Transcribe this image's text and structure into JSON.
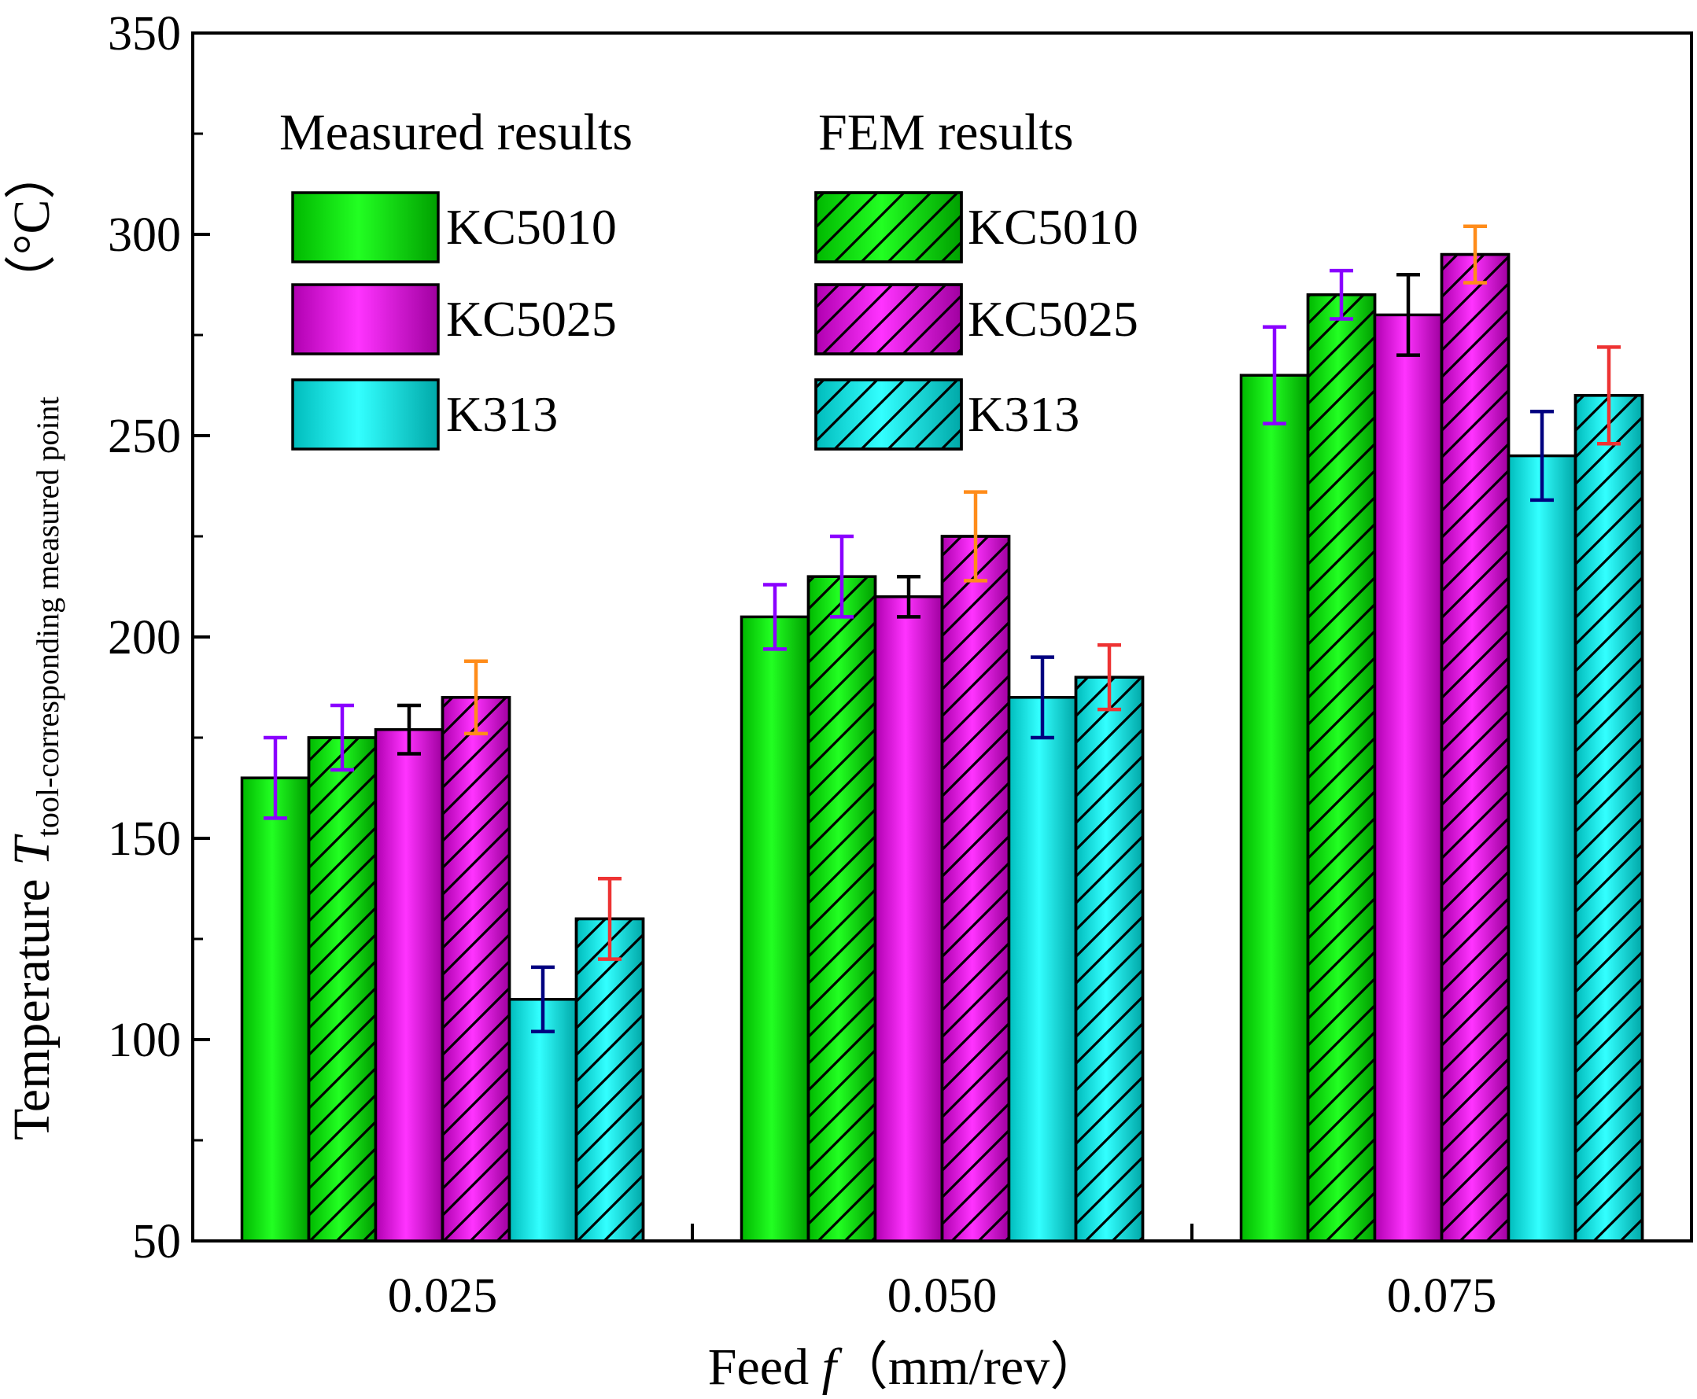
{
  "chart_data": {
    "type": "bar",
    "title": "",
    "xlabel": {
      "pre": "Feed ",
      "var": "f",
      "post": "（mm/rev）"
    },
    "ylabel": {
      "pre": "Temperature ",
      "var": "T",
      "sub": "tool-corresponding measured point",
      "unit": "（°C）"
    },
    "categories": [
      "0.025",
      "0.050",
      "0.075"
    ],
    "ylim": [
      50,
      350
    ],
    "yticks": [
      "50",
      "100",
      "150",
      "200",
      "250",
      "300",
      "350"
    ],
    "grid": false,
    "legend": {
      "placement": "top-left",
      "groups": [
        {
          "heading": "Measured results",
          "entries": [
            "KC5010",
            "KC5025",
            "K313"
          ]
        },
        {
          "heading": "FEM results",
          "entries": [
            "KC5010",
            "KC5025",
            "K313"
          ]
        }
      ]
    },
    "series": [
      {
        "name": "KC5010",
        "group": "Measured results",
        "color": "#00e000",
        "hatched": false,
        "errColor": "#8a00ff",
        "values": [
          165,
          205,
          265
        ],
        "errors": [
          10,
          8,
          12
        ]
      },
      {
        "name": "KC5010",
        "group": "FEM results",
        "color": "#00e000",
        "hatched": true,
        "errColor": "#8a00ff",
        "values": [
          175,
          215,
          285
        ],
        "errors": [
          8,
          10,
          6
        ]
      },
      {
        "name": "KC5025",
        "group": "Measured results",
        "color": "#ee00ee",
        "hatched": false,
        "errColor": "#000000",
        "values": [
          177,
          210,
          280
        ],
        "errors": [
          6,
          5,
          10
        ]
      },
      {
        "name": "KC5025",
        "group": "FEM results",
        "color": "#ee00ee",
        "hatched": true,
        "errColor": "#ff8c1a",
        "values": [
          185,
          225,
          295
        ],
        "errors": [
          9,
          11,
          7
        ]
      },
      {
        "name": "K313",
        "group": "Measured results",
        "color": "#00f0f0",
        "hatched": false,
        "errColor": "#000080",
        "values": [
          110,
          185,
          245
        ],
        "errors": [
          8,
          10,
          11
        ]
      },
      {
        "name": "K313",
        "group": "FEM results",
        "color": "#00f0f0",
        "hatched": true,
        "errColor": "#ee3333",
        "values": [
          130,
          190,
          260
        ],
        "errors": [
          10,
          8,
          12
        ]
      }
    ]
  }
}
